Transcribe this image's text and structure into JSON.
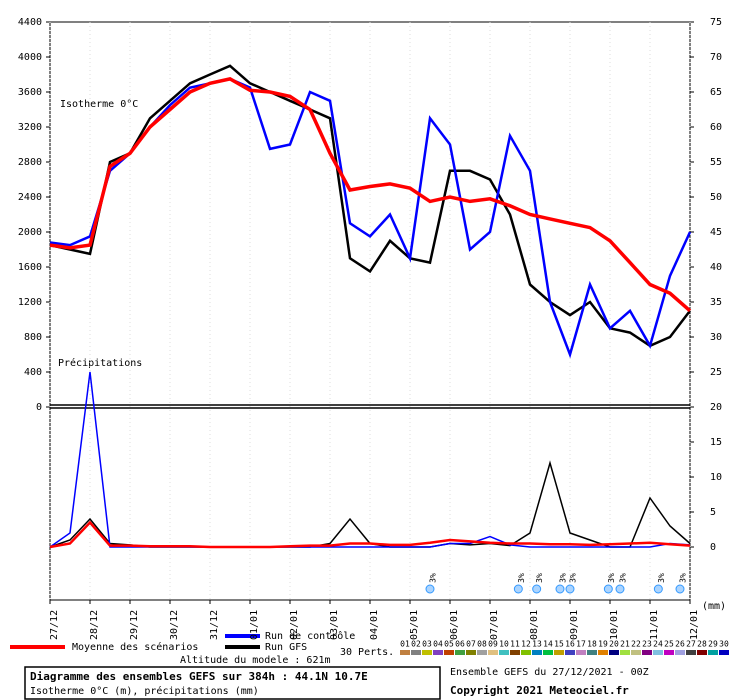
{
  "chart_data": {
    "type": "line",
    "annotations": {
      "isotherm": "Isotherme 0°C",
      "precip": "Précipitations",
      "unit": "(mm)",
      "altitude": "Altitude du modele : 621m",
      "perts": "30 Perts."
    },
    "footer": {
      "title": "Diagramme des ensembles GEFS sur 384h : 44.1N 10.7E",
      "subtitle": "Isotherme 0°C (m), précipitations (mm)",
      "run": "Ensemble GEFS du 27/12/2021 - 00Z",
      "copyright": "Copyright 2021 Meteociel.fr"
    },
    "x": [
      0,
      12,
      24,
      36,
      48,
      60,
      72,
      84,
      96,
      108,
      120,
      132,
      144,
      156,
      168,
      180,
      192,
      204,
      216,
      228,
      240,
      252,
      264,
      276,
      288,
      300,
      312,
      324,
      336,
      348,
      360,
      372,
      384
    ],
    "xlim": [
      0,
      384
    ],
    "xticks": [
      {
        "value": 0,
        "label": "27/12"
      },
      {
        "value": 24,
        "label": "28/12"
      },
      {
        "value": 48,
        "label": "29/12"
      },
      {
        "value": 72,
        "label": "30/12"
      },
      {
        "value": 96,
        "label": "31/12"
      },
      {
        "value": 120,
        "label": "01/01"
      },
      {
        "value": 144,
        "label": "02/01"
      },
      {
        "value": 168,
        "label": "03/01"
      },
      {
        "value": 192,
        "label": "04/01"
      },
      {
        "value": 216,
        "label": "05/01"
      },
      {
        "value": 240,
        "label": "06/01"
      },
      {
        "value": 264,
        "label": "07/01"
      },
      {
        "value": 288,
        "label": "08/01"
      },
      {
        "value": 312,
        "label": "09/01"
      },
      {
        "value": 336,
        "label": "10/01"
      },
      {
        "value": 360,
        "label": "11/01"
      },
      {
        "value": 384,
        "label": "12/01"
      }
    ],
    "ylim": [
      0,
      4400
    ],
    "yticks": [
      0,
      400,
      800,
      1200,
      1600,
      2000,
      2400,
      2800,
      3200,
      3600,
      4000,
      4400
    ],
    "y2lim": [
      0,
      75
    ],
    "y2ticks": [
      0,
      5,
      10,
      15,
      20,
      25,
      30,
      35,
      40,
      45,
      50,
      55,
      60,
      65,
      70,
      75
    ],
    "series": [
      {
        "name": "Moyenne des scénarios",
        "color": "#ff0000",
        "values": [
          1850,
          1820,
          1850,
          2750,
          2900,
          3200,
          3400,
          3600,
          3700,
          3750,
          3620,
          3600,
          3550,
          3400,
          2900,
          2480,
          2520,
          2550,
          2500,
          2350,
          2400,
          2350,
          2380,
          2300,
          2200,
          2150,
          2100,
          2050,
          1900,
          1650,
          1400,
          1300,
          1100
        ],
        "precip": [
          0,
          0.5,
          3.5,
          0.2,
          0.2,
          0.1,
          0.1,
          0.1,
          0,
          0,
          0,
          0,
          0.1,
          0.2,
          0.2,
          0.5,
          0.5,
          0.3,
          0.3,
          0.6,
          1,
          0.8,
          0.6,
          0.5,
          0.5,
          0.4,
          0.4,
          0.3,
          0.4,
          0.5,
          0.6,
          0.4,
          0.2
        ]
      },
      {
        "name": "Run de contrôle",
        "color": "#0000ff",
        "values": [
          1880,
          1850,
          1950,
          2700,
          2900,
          3200,
          3450,
          3650,
          3700,
          3750,
          3650,
          2950,
          3000,
          3600,
          3500,
          2100,
          1950,
          2200,
          1700,
          3300,
          3000,
          1800,
          2000,
          3100,
          2700,
          1200,
          600,
          1400,
          900,
          1100,
          700,
          1500,
          2000
        ],
        "precip": [
          0,
          2,
          25,
          0,
          0,
          0,
          0,
          0,
          0,
          0,
          0,
          0,
          0,
          0,
          0,
          0,
          0,
          0,
          0,
          0,
          0.5,
          0.5,
          1.5,
          0.3,
          0,
          0,
          0,
          0,
          0,
          0,
          0,
          0.5,
          0.3
        ]
      },
      {
        "name": "Run GFS",
        "color": "#000000",
        "values": [
          1850,
          1800,
          1750,
          2800,
          2900,
          3300,
          3500,
          3700,
          3800,
          3900,
          3700,
          3600,
          3500,
          3400,
          3300,
          1700,
          1550,
          1900,
          1700,
          1650,
          2700,
          2700,
          2600,
          2200,
          1400,
          1200,
          1050,
          1200,
          900,
          850,
          700,
          800,
          1100
        ],
        "precip": [
          0,
          1,
          4,
          0.5,
          0.3,
          0,
          0,
          0,
          0,
          0,
          0,
          0,
          0,
          0,
          0.5,
          4,
          0.5,
          0,
          0,
          0,
          0.5,
          0.3,
          0.5,
          0.2,
          2,
          12,
          2,
          1,
          0,
          0,
          7,
          3,
          0.5
        ]
      }
    ],
    "perturbations": [
      {
        "name": "01",
        "color": "#c08040"
      },
      {
        "name": "02",
        "color": "#808080"
      },
      {
        "name": "03",
        "color": "#c0c000"
      },
      {
        "name": "04",
        "color": "#8040c0"
      },
      {
        "name": "05",
        "color": "#c04000"
      },
      {
        "name": "06",
        "color": "#40a040"
      },
      {
        "name": "07",
        "color": "#808000"
      },
      {
        "name": "08",
        "color": "#a0a0a0"
      },
      {
        "name": "09",
        "color": "#e0c080"
      },
      {
        "name": "10",
        "color": "#40c0c0"
      },
      {
        "name": "11",
        "color": "#804000"
      },
      {
        "name": "12",
        "color": "#80c000"
      },
      {
        "name": "13",
        "color": "#0080c0"
      },
      {
        "name": "14",
        "color": "#00c040"
      },
      {
        "name": "15",
        "color": "#c0a000"
      },
      {
        "name": "16",
        "color": "#4040c0"
      },
      {
        "name": "17",
        "color": "#c080c0"
      },
      {
        "name": "18",
        "color": "#408080"
      },
      {
        "name": "19",
        "color": "#e08000"
      },
      {
        "name": "20",
        "color": "#000080"
      },
      {
        "name": "21",
        "color": "#a0e040"
      },
      {
        "name": "22",
        "color": "#c0c080"
      },
      {
        "name": "23",
        "color": "#800080"
      },
      {
        "name": "24",
        "color": "#80c0e0"
      },
      {
        "name": "25",
        "color": "#c000c0"
      },
      {
        "name": "26",
        "color": "#a0a0e0"
      },
      {
        "name": "27",
        "color": "#404040"
      },
      {
        "name": "28",
        "color": "#800000"
      },
      {
        "name": "29",
        "color": "#00a0a0"
      },
      {
        "name": "30",
        "color": "#0000c0"
      }
    ],
    "snow_markers": [
      {
        "x": 228,
        "label": "3%"
      },
      {
        "x": 281,
        "label": "3%"
      },
      {
        "x": 292,
        "label": "3%"
      },
      {
        "x": 306,
        "label": "3%"
      },
      {
        "x": 312,
        "label": "3%"
      },
      {
        "x": 335,
        "label": "3%"
      },
      {
        "x": 342,
        "label": "3%"
      },
      {
        "x": 365,
        "label": "3%"
      },
      {
        "x": 378,
        "label": "3%"
      }
    ]
  }
}
